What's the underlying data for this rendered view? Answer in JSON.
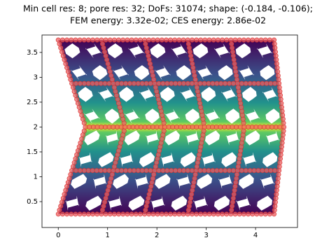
{
  "chart_data": {
    "type": "field",
    "title": [
      "Min cell res: 8; pore res: 32; DoFs: 31074; shape: (-0.184, -0.106);",
      "FEM energy: 3.32e-02; CES energy: 2.86e-02"
    ],
    "xlim": [
      -0.33,
      4.85
    ],
    "ylim": [
      -0.02,
      3.85
    ],
    "xticks": [
      0,
      1,
      2,
      3,
      4
    ],
    "yticks": [
      0.5,
      1.0,
      1.5,
      2.0,
      2.5,
      3.0,
      3.5
    ]
  }
}
